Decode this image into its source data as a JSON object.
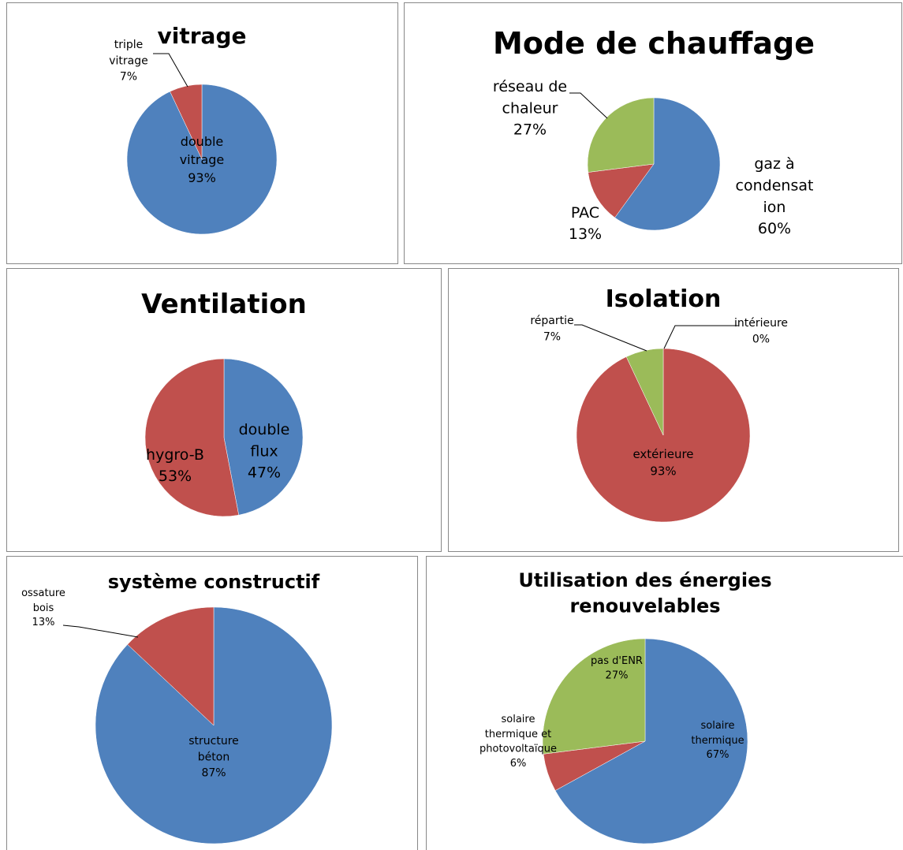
{
  "chart_data": [
    {
      "type": "pie",
      "title": "vitrage",
      "categories": [
        "double vitrage",
        "triple vitrage"
      ],
      "values": [
        93,
        7
      ],
      "value_labels": [
        "93%",
        "7%"
      ],
      "colors": [
        "#4f81bd",
        "#c0504d"
      ]
    },
    {
      "type": "pie",
      "title": "Mode de chauffage",
      "categories": [
        "gaz à condensation",
        "PAC",
        "réseau de chaleur"
      ],
      "values": [
        60,
        13,
        27
      ],
      "value_labels": [
        "60%",
        "13%",
        "27%"
      ],
      "colors": [
        "#4f81bd",
        "#c0504d",
        "#9bbb59"
      ]
    },
    {
      "type": "pie",
      "title": "Ventilation",
      "categories": [
        "double flux",
        "hygro-B"
      ],
      "values": [
        47,
        53
      ],
      "value_labels": [
        "47%",
        "53%"
      ],
      "colors": [
        "#4f81bd",
        "#c0504d"
      ]
    },
    {
      "type": "pie",
      "title": "Isolation",
      "categories": [
        "intérieure",
        "extérieure",
        "répartie"
      ],
      "values": [
        0,
        93,
        7
      ],
      "value_labels": [
        "0%",
        "93%",
        "7%"
      ],
      "colors": [
        "#4f81bd",
        "#c0504d",
        "#9bbb59"
      ]
    },
    {
      "type": "pie",
      "title": "système constructif",
      "categories": [
        "structure béton",
        "ossature bois"
      ],
      "values": [
        87,
        13
      ],
      "value_labels": [
        "87%",
        "13%"
      ],
      "colors": [
        "#4f81bd",
        "#c0504d"
      ]
    },
    {
      "type": "pie",
      "title": "Utilisation des énergies renouvelables",
      "categories": [
        "solaire thermique",
        "solaire thermique et photovoltaïque",
        "pas d'ENR"
      ],
      "values": [
        67,
        6,
        27
      ],
      "value_labels": [
        "67%",
        "6%",
        "27%"
      ],
      "colors": [
        "#4f81bd",
        "#c0504d",
        "#9bbb59"
      ]
    }
  ]
}
